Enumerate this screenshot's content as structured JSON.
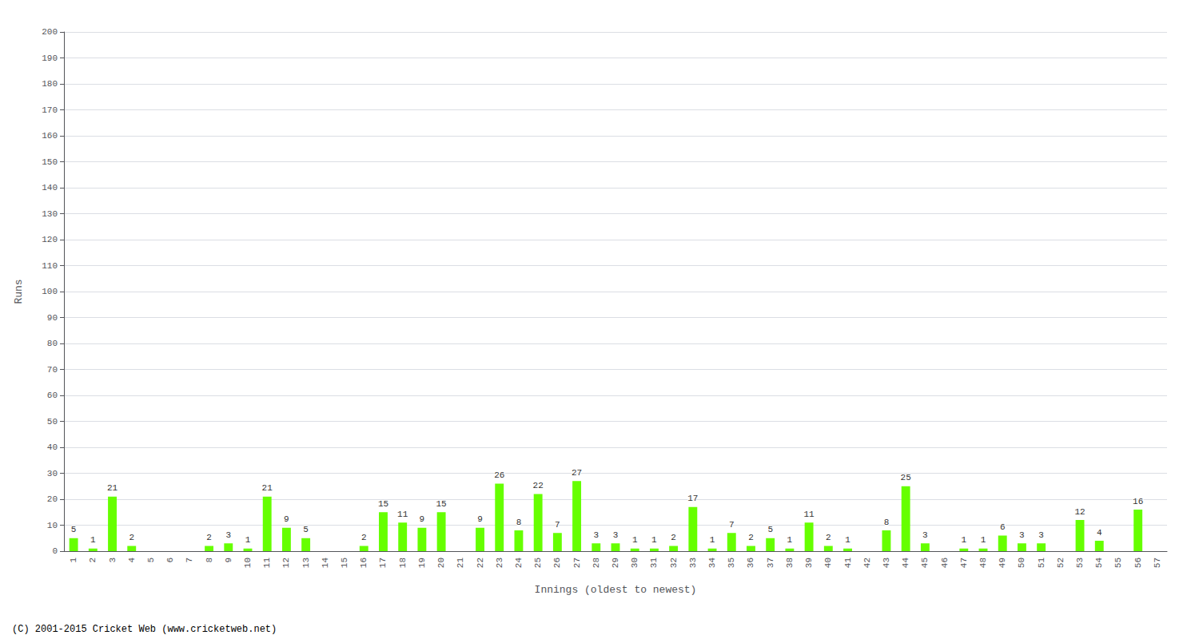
{
  "chart_data": {
    "type": "bar",
    "xlabel": "Innings (oldest to newest)",
    "ylabel": "Runs",
    "annotations": [
      "(C) 2001-2015 Cricket Web (www.cricketweb.net)"
    ],
    "categories": [
      "1",
      "2",
      "3",
      "4",
      "5",
      "6",
      "7",
      "8",
      "9",
      "10",
      "11",
      "12",
      "13",
      "14",
      "15",
      "16",
      "17",
      "18",
      "19",
      "20",
      "21",
      "22",
      "23",
      "24",
      "25",
      "26",
      "27",
      "28",
      "29",
      "30",
      "31",
      "32",
      "33",
      "34",
      "35",
      "36",
      "37",
      "38",
      "39",
      "40",
      "41",
      "42",
      "43",
      "44",
      "45",
      "46",
      "47",
      "48",
      "49",
      "50",
      "51",
      "52",
      "53",
      "54",
      "55",
      "56",
      "57"
    ],
    "values": [
      5,
      1,
      21,
      2,
      0,
      0,
      0,
      2,
      3,
      1,
      21,
      9,
      5,
      0,
      0,
      2,
      15,
      11,
      9,
      15,
      0,
      9,
      26,
      8,
      22,
      7,
      27,
      3,
      3,
      1,
      1,
      2,
      17,
      1,
      7,
      2,
      5,
      1,
      11,
      2,
      1,
      0,
      8,
      25,
      3,
      0,
      1,
      1,
      6,
      3,
      3,
      0,
      12,
      4,
      0,
      16,
      0
    ],
    "value_labels": [
      "5",
      "1",
      "21",
      "2",
      null,
      null,
      null,
      "2",
      "3",
      "1",
      "21",
      "9",
      "5",
      null,
      null,
      "2",
      "15",
      "11",
      "9",
      "15",
      null,
      "9",
      "26",
      "8",
      "22",
      "7",
      "27",
      "3",
      "3",
      "1",
      "1",
      "2",
      "17",
      "1",
      "7",
      "2",
      "5",
      "1",
      "11",
      "2",
      "1",
      null,
      "8",
      "25",
      "3",
      null,
      "1",
      "1",
      "6",
      "3",
      "3",
      null,
      "12",
      "4",
      null,
      "16",
      null
    ],
    "data_labels": true,
    "color": "#66ff00",
    "ylim": [
      0,
      200
    ],
    "yticks": [
      0,
      10,
      20,
      30,
      40,
      50,
      60,
      70,
      80,
      90,
      100,
      110,
      120,
      130,
      140,
      150,
      160,
      170,
      180,
      190,
      200
    ],
    "grid": true
  }
}
